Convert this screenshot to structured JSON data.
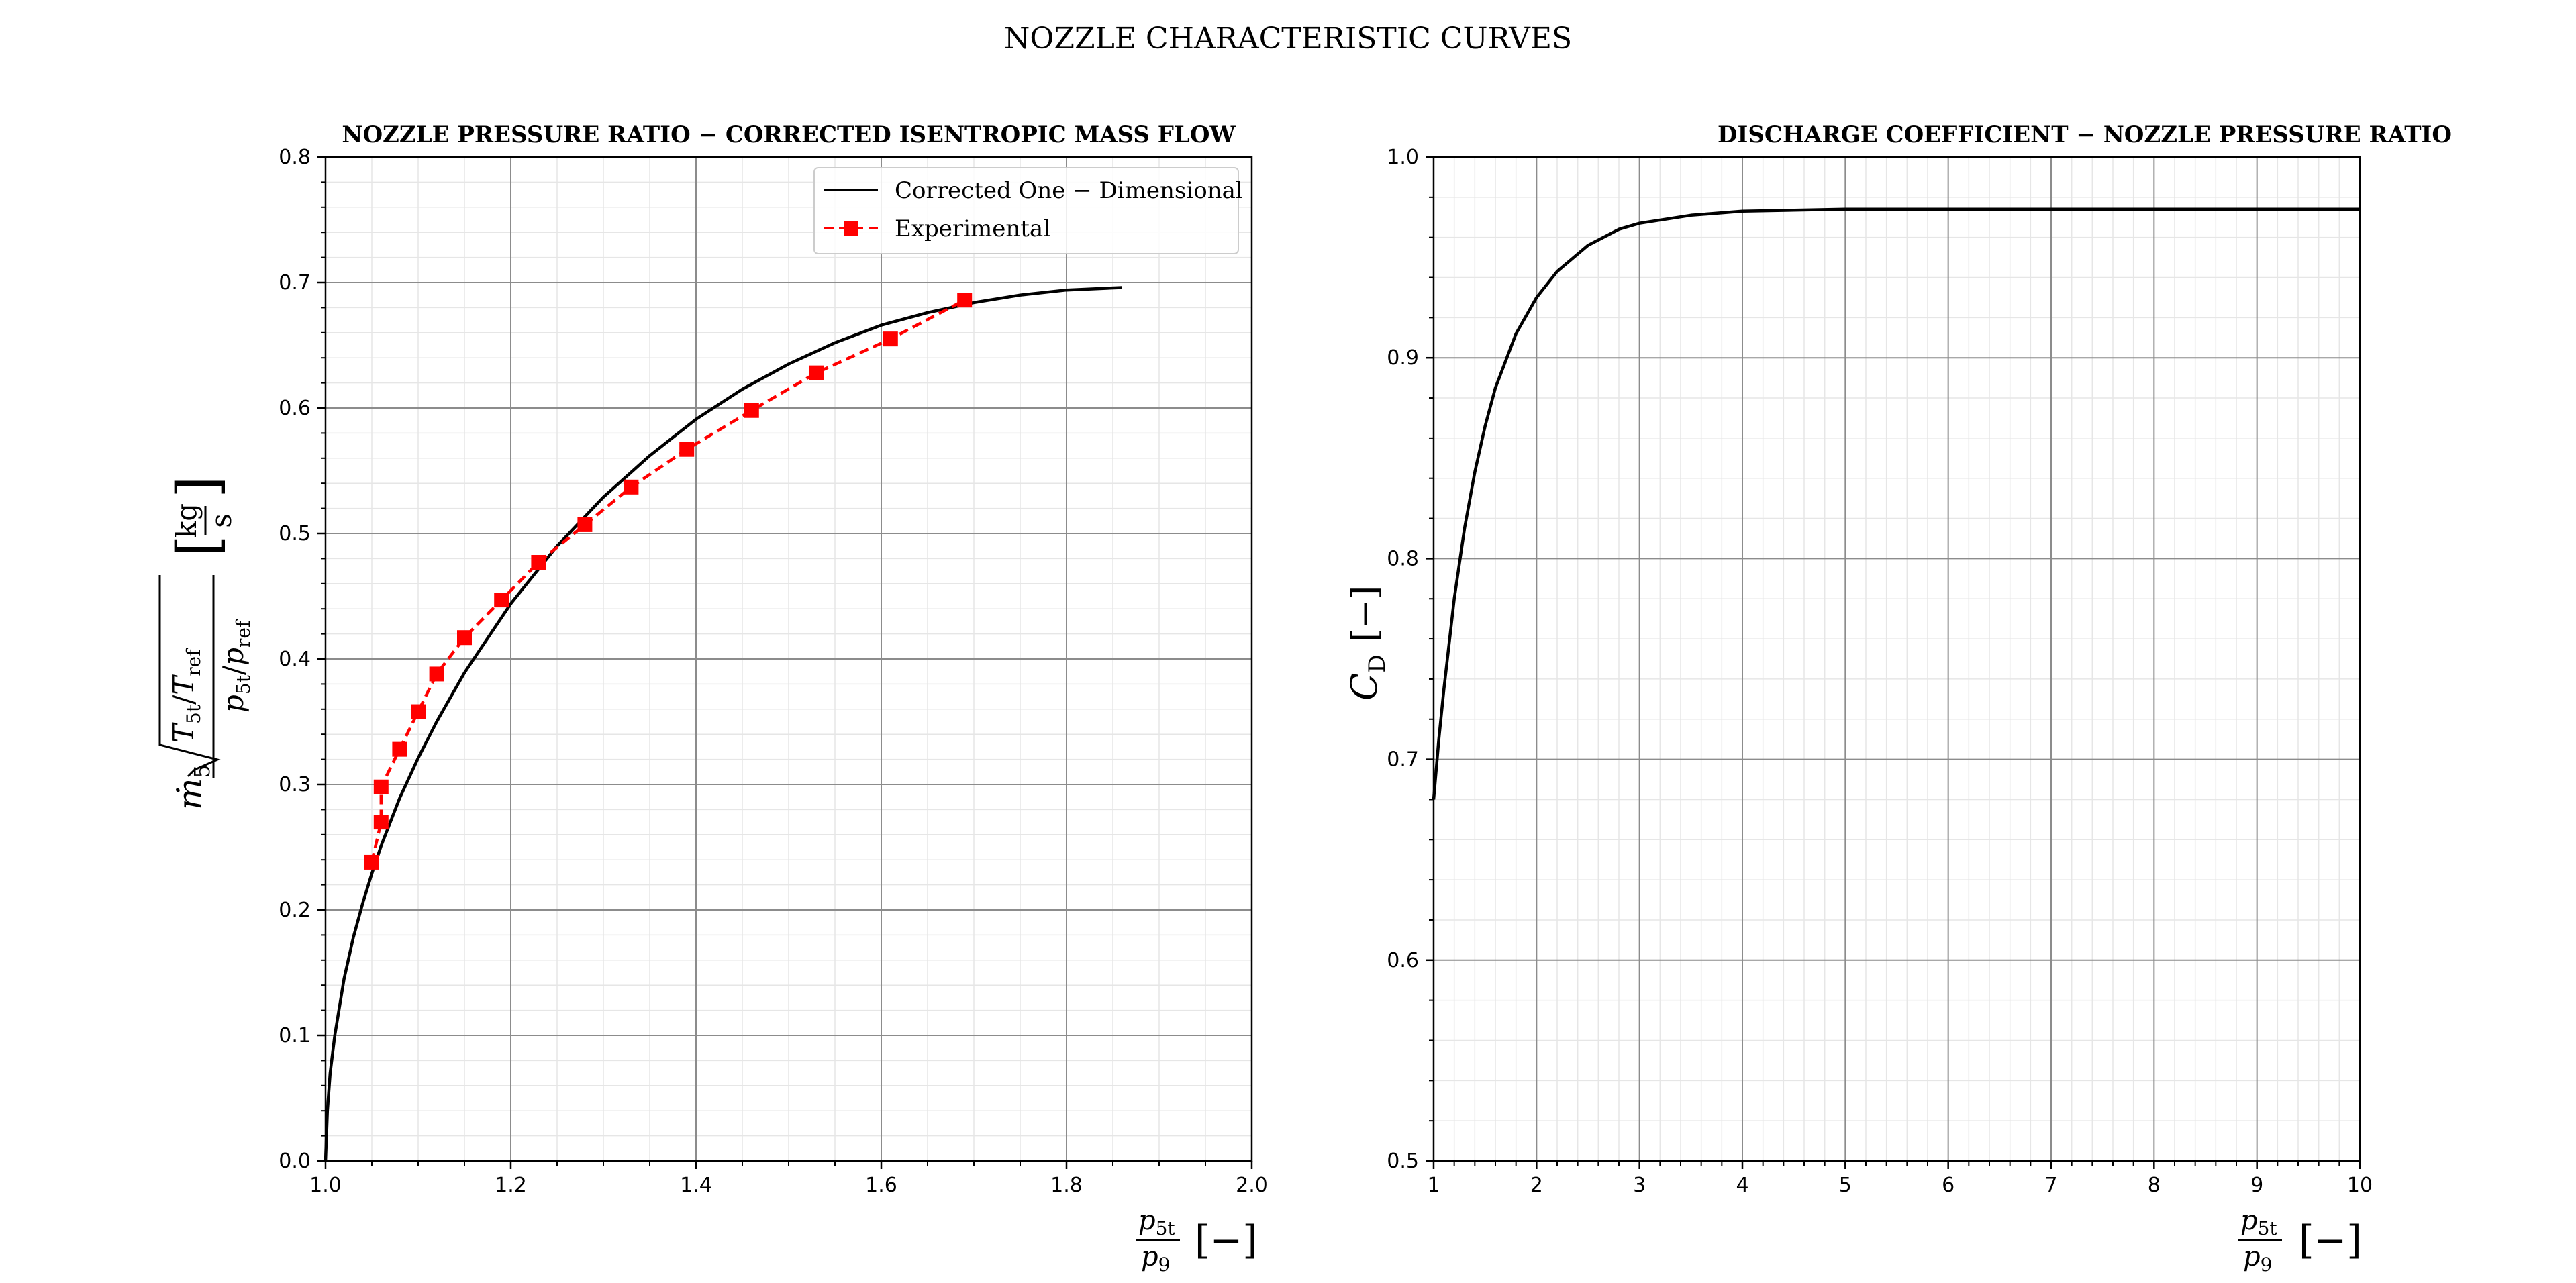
{
  "figure": {
    "title": "NOZZLE CHARACTERISTIC CURVES"
  },
  "chart_data": [
    {
      "type": "line",
      "title": "NOZZLE PRESSURE RATIO − CORRECTED ISENTROPIC MASS FLOW",
      "xlabel": {
        "num": "p",
        "num_sub": "5t",
        "den": "p",
        "den_sub": "9",
        "unit": "[−]"
      },
      "ylabel": {
        "m": "ṁ",
        "m_sub": "5",
        "T": "T",
        "T_sub": "5t",
        "Tref": "T",
        "Tref_sub": "ref",
        "p": "p",
        "p_sub": "5t",
        "pref": "p",
        "pref_sub": "ref",
        "unit_num": "kg",
        "unit_den": "s"
      },
      "xlim": [
        1.0,
        2.0
      ],
      "ylim": [
        0.0,
        0.8
      ],
      "xticks": [
        1.0,
        1.2,
        1.4,
        1.6,
        1.8,
        2.0
      ],
      "xtick_labels": [
        "1.0",
        "1.2",
        "1.4",
        "1.6",
        "1.8",
        "2.0"
      ],
      "yticks": [
        0.0,
        0.1,
        0.2,
        0.3,
        0.4,
        0.5,
        0.6,
        0.7,
        0.8
      ],
      "ytick_labels": [
        "0.0",
        "0.1",
        "0.2",
        "0.3",
        "0.4",
        "0.5",
        "0.6",
        "0.7",
        "0.8"
      ],
      "grid": true,
      "legend": {
        "placement": "top-right"
      },
      "series": [
        {
          "name": "Corrected One − Dimensional",
          "style": "solid",
          "color": "#000000",
          "x": [
            1.0,
            1.002,
            1.005,
            1.01,
            1.02,
            1.03,
            1.04,
            1.05,
            1.06,
            1.08,
            1.1,
            1.12,
            1.15,
            1.2,
            1.25,
            1.3,
            1.35,
            1.4,
            1.45,
            1.5,
            1.55,
            1.6,
            1.65,
            1.7,
            1.75,
            1.8,
            1.86
          ],
          "y": [
            0.0,
            0.04,
            0.07,
            0.1,
            0.145,
            0.178,
            0.205,
            0.229,
            0.251,
            0.289,
            0.321,
            0.35,
            0.389,
            0.444,
            0.49,
            0.529,
            0.562,
            0.591,
            0.615,
            0.635,
            0.652,
            0.666,
            0.676,
            0.684,
            0.69,
            0.694,
            0.696
          ]
        },
        {
          "name": "Experimental",
          "style": "dashed",
          "marker": "square",
          "color": "#ff0000",
          "x": [
            1.05,
            1.06,
            1.06,
            1.08,
            1.1,
            1.12,
            1.15,
            1.19,
            1.23,
            1.28,
            1.33,
            1.39,
            1.46,
            1.53,
            1.61,
            1.69
          ],
          "y": [
            0.238,
            0.27,
            0.298,
            0.328,
            0.358,
            0.388,
            0.417,
            0.447,
            0.477,
            0.507,
            0.537,
            0.567,
            0.598,
            0.628,
            0.655,
            0.686
          ]
        }
      ]
    },
    {
      "type": "line",
      "title": "DISCHARGE COEFFICIENT − NOZZLE PRESSURE RATIO",
      "xlabel": {
        "num": "p",
        "num_sub": "5t",
        "den": "p",
        "den_sub": "9",
        "unit": "[−]"
      },
      "ylabel": {
        "sym": "C",
        "sym_sub": "D",
        "unit": "[−]"
      },
      "xlim": [
        1,
        10
      ],
      "ylim": [
        0.5,
        1.0
      ],
      "xticks": [
        1,
        2,
        3,
        4,
        5,
        6,
        7,
        8,
        9,
        10
      ],
      "xtick_labels": [
        "1",
        "2",
        "3",
        "4",
        "5",
        "6",
        "7",
        "8",
        "9",
        "10"
      ],
      "yticks": [
        0.5,
        0.6,
        0.7,
        0.8,
        0.9,
        1.0
      ],
      "ytick_labels": [
        "0.5",
        "0.6",
        "0.7",
        "0.8",
        "0.9",
        "1.0"
      ],
      "grid": true,
      "series": [
        {
          "name": "C_D",
          "style": "solid",
          "color": "#000000",
          "x": [
            1.0,
            1.05,
            1.1,
            1.2,
            1.3,
            1.4,
            1.5,
            1.6,
            1.8,
            2.0,
            2.2,
            2.5,
            2.8,
            3.0,
            3.5,
            4.0,
            5.0,
            6.0,
            7.0,
            8.0,
            9.0,
            10.0
          ],
          "y": [
            0.68,
            0.71,
            0.735,
            0.78,
            0.815,
            0.843,
            0.866,
            0.885,
            0.912,
            0.93,
            0.943,
            0.956,
            0.964,
            0.967,
            0.971,
            0.973,
            0.974,
            0.974,
            0.974,
            0.974,
            0.974,
            0.974
          ]
        }
      ]
    }
  ]
}
